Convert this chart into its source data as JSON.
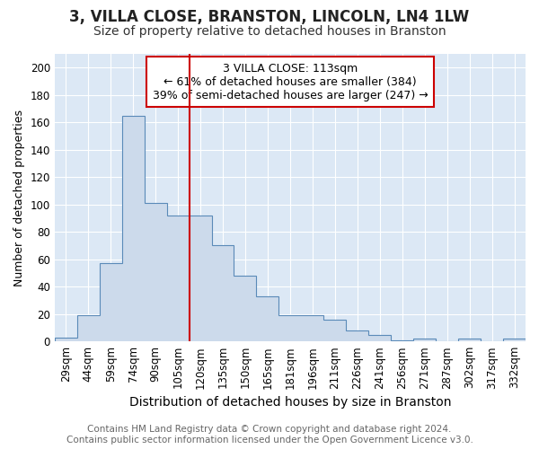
{
  "title": "3, VILLA CLOSE, BRANSTON, LINCOLN, LN4 1LW",
  "subtitle": "Size of property relative to detached houses in Branston",
  "xlabel": "Distribution of detached houses by size in Branston",
  "ylabel": "Number of detached properties",
  "bar_fill_color": "#ccdaeb",
  "bar_edge_color": "#5a8ab8",
  "background_color": "#dce8f5",
  "grid_color": "#ffffff",
  "categories": [
    "29sqm",
    "44sqm",
    "59sqm",
    "74sqm",
    "90sqm",
    "105sqm",
    "120sqm",
    "135sqm",
    "150sqm",
    "165sqm",
    "181sqm",
    "196sqm",
    "211sqm",
    "226sqm",
    "241sqm",
    "256sqm",
    "271sqm",
    "287sqm",
    "302sqm",
    "317sqm",
    "332sqm"
  ],
  "values": [
    3,
    19,
    57,
    165,
    101,
    92,
    92,
    70,
    48,
    33,
    19,
    19,
    16,
    8,
    5,
    1,
    2,
    0,
    2,
    0,
    2
  ],
  "vline_color": "#cc0000",
  "vline_index": 6,
  "annotation_text": "3 VILLA CLOSE: 113sqm\n← 61% of detached houses are smaller (384)\n39% of semi-detached houses are larger (247) →",
  "ylim": [
    0,
    210
  ],
  "yticks": [
    0,
    20,
    40,
    60,
    80,
    100,
    120,
    140,
    160,
    180,
    200
  ],
  "footer_text": "Contains HM Land Registry data © Crown copyright and database right 2024.\nContains public sector information licensed under the Open Government Licence v3.0.",
  "title_fontsize": 12,
  "subtitle_fontsize": 10,
  "xlabel_fontsize": 10,
  "ylabel_fontsize": 9,
  "tick_fontsize": 8.5,
  "annotation_fontsize": 9,
  "footer_fontsize": 7.5,
  "fig_facecolor": "#ffffff"
}
